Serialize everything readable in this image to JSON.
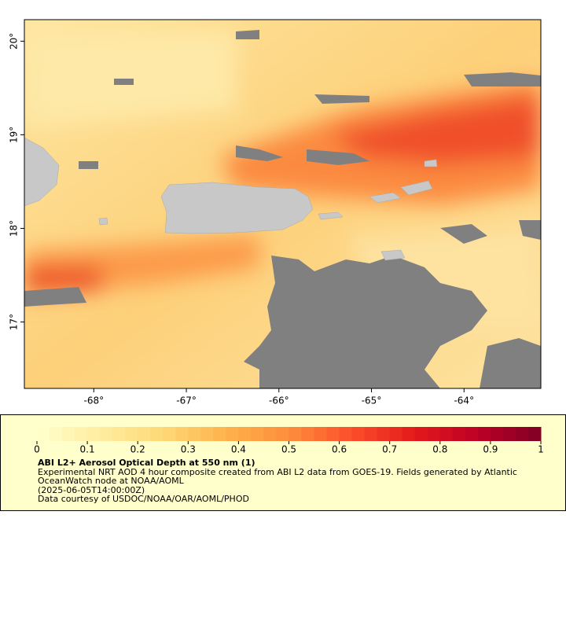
{
  "map": {
    "xlim": [
      -68.75,
      -63.17
    ],
    "ylim": [
      16.29,
      20.23
    ],
    "xticks": [
      {
        "value": -68,
        "label": "-68°"
      },
      {
        "value": -67,
        "label": "-67°"
      },
      {
        "value": -66,
        "label": "-66°"
      },
      {
        "value": -65,
        "label": "-65°"
      },
      {
        "value": -64,
        "label": "-64°"
      }
    ],
    "yticks": [
      {
        "value": 17,
        "label": "17°"
      },
      {
        "value": 18,
        "label": "18°"
      },
      {
        "value": 19,
        "label": "19°"
      },
      {
        "value": 20,
        "label": "20°"
      }
    ]
  },
  "colorbar": {
    "range": [
      0,
      1
    ],
    "ticks": [
      0,
      0.1,
      0.2,
      0.3,
      0.4,
      0.5,
      0.6,
      0.7,
      0.8,
      0.9,
      1
    ],
    "colors": [
      "#ffffcc",
      "#ffeda0",
      "#fed976",
      "#feb24c",
      "#fd8d3c",
      "#fc4e2a",
      "#e31a1c",
      "#bd0026",
      "#800026"
    ]
  },
  "legend": {
    "title": "ABI L2+ Aerosol Optical Depth at 550 nm (1)",
    "description": "Experimental NRT AOD 4 hour composite created from ABI L2 data from GOES-19. Fields generated by Atlantic OceanWatch node at NOAA/AOML",
    "date": "(2025-06-05T14:00:00Z)",
    "credit": "Data courtesy of USDOC/NOAA/OAR/AOML/PHOD"
  }
}
